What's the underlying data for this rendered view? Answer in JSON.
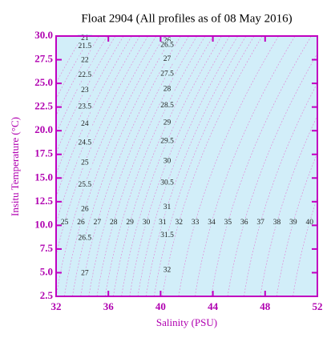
{
  "chart_data": {
    "type": "ts-diagram",
    "title": "Float 2904  (All profiles as of 08 May 2016)",
    "x_label": "Salinity (PSU)",
    "y_label": "Insitu Temperature (°C)",
    "xlim": [
      32,
      52
    ],
    "xticks": [
      32,
      36,
      40,
      44,
      48,
      52
    ],
    "ylim": [
      2.5,
      30
    ],
    "yticks": [
      2.5,
      {
        "value": 5,
        "label": "5.0"
      },
      7.5,
      {
        "value": 10,
        "label": "10.0"
      },
      12.5,
      {
        "value": 15,
        "label": "15.0"
      },
      17.5,
      {
        "value": 20,
        "label": "20.0"
      },
      22.5,
      {
        "value": 25,
        "label": "25.0"
      },
      27.5,
      {
        "value": 30,
        "label": "30.0"
      }
    ],
    "background": "#d2eef9",
    "axis_color": "#c000c0",
    "contour_color": "#e08cd8",
    "contour_labels_left": [
      21,
      21.5,
      22,
      22.5,
      23,
      23.5,
      24,
      24.5,
      25,
      25.5,
      26,
      26.5,
      27
    ],
    "contour_labels_right": [
      26,
      26.5,
      27,
      27.5,
      28,
      28.5,
      29,
      29.5,
      30,
      30.5,
      31,
      31.5,
      32
    ],
    "contour_labels_bottom": [
      25,
      26,
      27,
      28,
      29,
      30,
      31,
      32,
      33,
      34,
      35,
      36,
      37,
      38,
      39,
      40
    ]
  }
}
